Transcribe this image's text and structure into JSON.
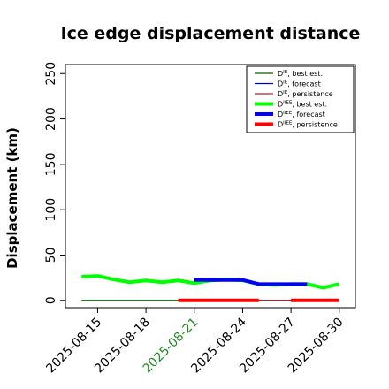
{
  "chart_data": {
    "type": "line",
    "title": "Ice edge displacement distance",
    "xlabel": "",
    "ylabel": "Displacement (km)",
    "ylim": [
      -8,
      260
    ],
    "xlim": [
      "2025-08-13",
      "2025-08-31"
    ],
    "yticks": [
      0,
      50,
      100,
      150,
      200,
      250
    ],
    "xticks": [
      {
        "date": "2025-08-15",
        "label": "2025-08-15",
        "color": "#000000"
      },
      {
        "date": "2025-08-18",
        "label": "2025-08-18",
        "color": "#000000"
      },
      {
        "date": "2025-08-21",
        "label": "2025-08-21",
        "color": "#228b22"
      },
      {
        "date": "2025-08-24",
        "label": "2025-08-24",
        "color": "#000000"
      },
      {
        "date": "2025-08-27",
        "label": "2025-08-27",
        "color": "#000000"
      },
      {
        "date": "2025-08-30",
        "label": "2025-08-30",
        "color": "#000000"
      }
    ],
    "legend_position": "top-right",
    "series": [
      {
        "name_main": "D",
        "name_sup": "IE",
        "name_rest": ", best est.",
        "color": "#006400",
        "width": 1.3,
        "x": [
          "2025-08-14",
          "2025-08-15",
          "2025-08-16",
          "2025-08-17",
          "2025-08-18",
          "2025-08-19",
          "2025-08-20",
          "2025-08-21"
        ],
        "y": [
          0,
          0,
          0,
          0,
          0,
          0,
          0,
          0
        ]
      },
      {
        "name_main": "D",
        "name_sup": "IE",
        "name_rest": ", forecast",
        "color": "#0000cd",
        "width": 1.3,
        "x": [
          "2025-08-21",
          "2025-08-22",
          "2025-08-23",
          "2025-08-24",
          "2025-08-25",
          "2025-08-26",
          "2025-08-27",
          "2025-08-28",
          "2025-08-29",
          "2025-08-30"
        ],
        "y": [
          0,
          0,
          0,
          0,
          0,
          0,
          0,
          0,
          0,
          0
        ]
      },
      {
        "name_main": "D",
        "name_sup": "IE",
        "name_rest": ", persistence",
        "color": "#b22222",
        "width": 1.3,
        "x": [
          "2025-08-20",
          "2025-08-21",
          "2025-08-22",
          "2025-08-23",
          "2025-08-24",
          "2025-08-25",
          "2025-08-26",
          "2025-08-27",
          "2025-08-28",
          "2025-08-29",
          "2025-08-30"
        ],
        "y": [
          0,
          0,
          0,
          0,
          0,
          0,
          0,
          0,
          0,
          0,
          0
        ]
      },
      {
        "name_main": "D",
        "name_sup": "IIEE",
        "name_rest": ", best est.",
        "color": "#00ff00",
        "width": 4,
        "x": [
          "2025-08-14",
          "2025-08-15",
          "2025-08-16",
          "2025-08-17",
          "2025-08-18",
          "2025-08-19",
          "2025-08-20",
          "2025-08-21",
          "2025-08-22",
          "2025-08-23",
          "2025-08-24",
          "2025-08-25",
          "2025-08-26",
          "2025-08-27",
          "2025-08-28",
          "2025-08-29",
          "2025-08-30"
        ],
        "y": [
          26,
          27,
          23,
          20,
          22,
          20,
          22,
          19,
          22,
          23,
          22,
          18,
          17,
          18,
          18,
          14,
          18
        ]
      },
      {
        "name_main": "D",
        "name_sup": "IIEE",
        "name_rest": ", forecast",
        "color": "#0000ff",
        "width": 4,
        "x": [
          "2025-08-21",
          "2025-08-22",
          "2025-08-23",
          "2025-08-24",
          "2025-08-25",
          "2025-08-26",
          "2025-08-27",
          "2025-08-28"
        ],
        "y": [
          22.5,
          22.5,
          22.5,
          22.5,
          18,
          18,
          18,
          18
        ]
      },
      {
        "name_main": "D",
        "name_sup": "IIEE",
        "name_rest": ", persistence",
        "color": "#ff0000",
        "width": 4,
        "x": [
          "2025-08-20",
          "2025-08-21",
          "2025-08-22",
          "2025-08-23",
          "2025-08-24",
          "2025-08-25"
        ],
        "y": [
          0,
          0,
          0,
          0,
          0,
          0
        ]
      },
      {
        "name_main": "D",
        "name_sup": "IIEE",
        "name_rest": ", persistence",
        "color": "#ff0000",
        "width": 4,
        "hide_legend": true,
        "x": [
          "2025-08-27",
          "2025-08-28",
          "2025-08-29",
          "2025-08-30"
        ],
        "y": [
          0,
          0,
          0,
          0
        ]
      }
    ]
  }
}
